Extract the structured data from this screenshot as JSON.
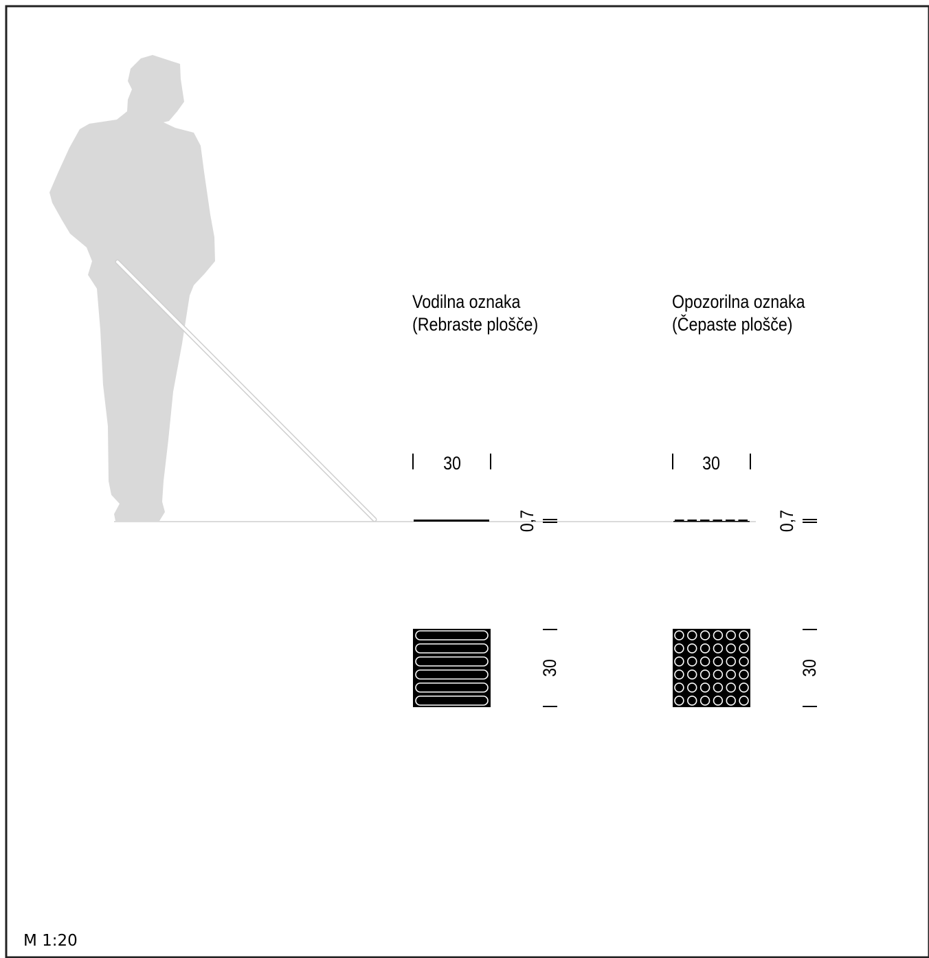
{
  "frame_color": "#222222",
  "figure_color": "#d9d9d9",
  "ink_color": "#000000",
  "person": {
    "icon": "person-with-white-cane-silhouette"
  },
  "guide": {
    "title_line1": "Vodilna oznaka",
    "title_line2": "(Rebraste plošče)",
    "width_value": "30",
    "height_value": "0,7",
    "depth_value": "30",
    "tile_pattern": "ribs",
    "rib_count": 6
  },
  "warning": {
    "title_line1": "Opozorilna oznaka",
    "title_line2": "(Čepaste plošče)",
    "width_value": "30",
    "height_value": "0,7",
    "depth_value": "30",
    "tile_pattern": "studs",
    "stud_rows": 6,
    "stud_cols": 6
  },
  "scale_label": "M 1:20"
}
